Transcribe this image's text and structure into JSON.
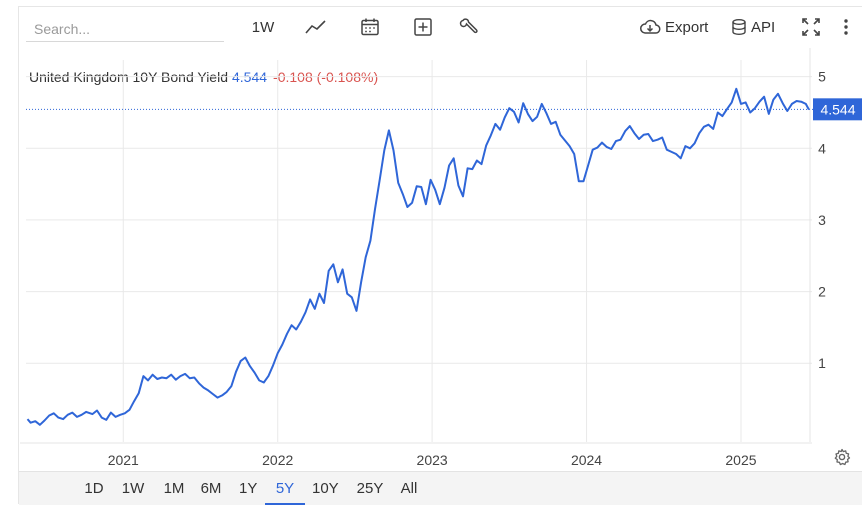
{
  "toolbar": {
    "search_placeholder": "Search...",
    "interval_label": "1W",
    "export_label": "Export",
    "api_label": "API"
  },
  "header": {
    "name": "United Kingdom 10Y Bond Yield",
    "last": "4.544",
    "change": "-0.108 (-0.108%)"
  },
  "price_tag": "4.544",
  "ranges": [
    "1D",
    "1W",
    "1M",
    "6M",
    "1Y",
    "5Y",
    "10Y",
    "25Y",
    "All"
  ],
  "active_range": "5Y",
  "colors": {
    "line": "#2f66d8",
    "negative": "#d9534f",
    "grid": "#e9e9e9"
  },
  "chart_data": {
    "type": "line",
    "title": "United Kingdom 10Y Bond Yield",
    "x_ticks": [
      "2021",
      "2022",
      "2023",
      "2024",
      "2025"
    ],
    "y_ticks": [
      1,
      2,
      3,
      4,
      5
    ],
    "ylim": [
      -0.1,
      5.4
    ],
    "xlim": [
      2020.37,
      2025.46
    ],
    "grid": true,
    "last_value": 4.544,
    "series": [
      {
        "values": [
          [
            2020.38,
            0.22
          ],
          [
            2020.4,
            0.17
          ],
          [
            2020.43,
            0.19
          ],
          [
            2020.46,
            0.14
          ],
          [
            2020.49,
            0.2
          ],
          [
            2020.52,
            0.27
          ],
          [
            2020.55,
            0.3
          ],
          [
            2020.58,
            0.24
          ],
          [
            2020.61,
            0.22
          ],
          [
            2020.64,
            0.28
          ],
          [
            2020.67,
            0.31
          ],
          [
            2020.7,
            0.25
          ],
          [
            2020.73,
            0.28
          ],
          [
            2020.76,
            0.32
          ],
          [
            2020.8,
            0.29
          ],
          [
            2020.83,
            0.34
          ],
          [
            2020.86,
            0.24
          ],
          [
            2020.89,
            0.21
          ],
          [
            2020.92,
            0.31
          ],
          [
            2020.95,
            0.25
          ],
          [
            2020.98,
            0.28
          ],
          [
            2021.01,
            0.3
          ],
          [
            2021.04,
            0.35
          ],
          [
            2021.07,
            0.47
          ],
          [
            2021.1,
            0.58
          ],
          [
            2021.13,
            0.82
          ],
          [
            2021.16,
            0.76
          ],
          [
            2021.19,
            0.84
          ],
          [
            2021.22,
            0.78
          ],
          [
            2021.25,
            0.8
          ],
          [
            2021.28,
            0.79
          ],
          [
            2021.31,
            0.84
          ],
          [
            2021.34,
            0.77
          ],
          [
            2021.37,
            0.82
          ],
          [
            2021.4,
            0.85
          ],
          [
            2021.43,
            0.79
          ],
          [
            2021.46,
            0.8
          ],
          [
            2021.49,
            0.72
          ],
          [
            2021.52,
            0.66
          ],
          [
            2021.55,
            0.62
          ],
          [
            2021.58,
            0.57
          ],
          [
            2021.61,
            0.52
          ],
          [
            2021.64,
            0.55
          ],
          [
            2021.67,
            0.6
          ],
          [
            2021.7,
            0.68
          ],
          [
            2021.73,
            0.88
          ],
          [
            2021.76,
            1.03
          ],
          [
            2021.79,
            1.08
          ],
          [
            2021.82,
            0.96
          ],
          [
            2021.85,
            0.87
          ],
          [
            2021.88,
            0.76
          ],
          [
            2021.91,
            0.73
          ],
          [
            2021.94,
            0.82
          ],
          [
            2021.97,
            0.97
          ],
          [
            2022.0,
            1.14
          ],
          [
            2022.03,
            1.26
          ],
          [
            2022.06,
            1.41
          ],
          [
            2022.09,
            1.53
          ],
          [
            2022.12,
            1.47
          ],
          [
            2022.15,
            1.58
          ],
          [
            2022.18,
            1.71
          ],
          [
            2022.21,
            1.89
          ],
          [
            2022.24,
            1.76
          ],
          [
            2022.27,
            1.97
          ],
          [
            2022.3,
            1.84
          ],
          [
            2022.33,
            2.29
          ],
          [
            2022.36,
            2.38
          ],
          [
            2022.39,
            2.13
          ],
          [
            2022.42,
            2.31
          ],
          [
            2022.45,
            1.97
          ],
          [
            2022.48,
            1.92
          ],
          [
            2022.51,
            1.73
          ],
          [
            2022.54,
            2.13
          ],
          [
            2022.57,
            2.48
          ],
          [
            2022.6,
            2.71
          ],
          [
            2022.63,
            3.15
          ],
          [
            2022.66,
            3.55
          ],
          [
            2022.69,
            3.97
          ],
          [
            2022.72,
            4.25
          ],
          [
            2022.75,
            3.97
          ],
          [
            2022.78,
            3.52
          ],
          [
            2022.81,
            3.36
          ],
          [
            2022.84,
            3.18
          ],
          [
            2022.87,
            3.24
          ],
          [
            2022.9,
            3.47
          ],
          [
            2022.93,
            3.46
          ],
          [
            2022.96,
            3.22
          ],
          [
            2022.99,
            3.56
          ],
          [
            2023.02,
            3.42
          ],
          [
            2023.05,
            3.22
          ],
          [
            2023.08,
            3.45
          ],
          [
            2023.11,
            3.76
          ],
          [
            2023.14,
            3.86
          ],
          [
            2023.17,
            3.48
          ],
          [
            2023.2,
            3.33
          ],
          [
            2023.23,
            3.72
          ],
          [
            2023.26,
            3.71
          ],
          [
            2023.29,
            3.83
          ],
          [
            2023.32,
            3.78
          ],
          [
            2023.35,
            4.04
          ],
          [
            2023.38,
            4.18
          ],
          [
            2023.41,
            4.34
          ],
          [
            2023.44,
            4.26
          ],
          [
            2023.47,
            4.43
          ],
          [
            2023.5,
            4.56
          ],
          [
            2023.53,
            4.51
          ],
          [
            2023.56,
            4.36
          ],
          [
            2023.59,
            4.63
          ],
          [
            2023.62,
            4.48
          ],
          [
            2023.65,
            4.38
          ],
          [
            2023.68,
            4.44
          ],
          [
            2023.71,
            4.62
          ],
          [
            2023.74,
            4.49
          ],
          [
            2023.77,
            4.34
          ],
          [
            2023.8,
            4.37
          ],
          [
            2023.83,
            4.19
          ],
          [
            2023.86,
            4.11
          ],
          [
            2023.89,
            4.03
          ],
          [
            2023.92,
            3.92
          ],
          [
            2023.95,
            3.54
          ],
          [
            2023.98,
            3.54
          ],
          [
            2024.01,
            3.76
          ],
          [
            2024.04,
            3.98
          ],
          [
            2024.07,
            4.01
          ],
          [
            2024.1,
            4.08
          ],
          [
            2024.13,
            4.02
          ],
          [
            2024.16,
            3.99
          ],
          [
            2024.19,
            4.1
          ],
          [
            2024.22,
            4.12
          ],
          [
            2024.25,
            4.24
          ],
          [
            2024.28,
            4.31
          ],
          [
            2024.31,
            4.21
          ],
          [
            2024.34,
            4.13
          ],
          [
            2024.37,
            4.19
          ],
          [
            2024.4,
            4.2
          ],
          [
            2024.43,
            4.1
          ],
          [
            2024.46,
            4.12
          ],
          [
            2024.49,
            4.15
          ],
          [
            2024.52,
            3.98
          ],
          [
            2024.55,
            3.95
          ],
          [
            2024.58,
            3.92
          ],
          [
            2024.61,
            3.86
          ],
          [
            2024.64,
            4.03
          ],
          [
            2024.67,
            4.0
          ],
          [
            2024.7,
            4.07
          ],
          [
            2024.73,
            4.21
          ],
          [
            2024.76,
            4.3
          ],
          [
            2024.79,
            4.33
          ],
          [
            2024.82,
            4.27
          ],
          [
            2024.85,
            4.5
          ],
          [
            2024.88,
            4.45
          ],
          [
            2024.91,
            4.55
          ],
          [
            2024.94,
            4.64
          ],
          [
            2024.97,
            4.83
          ],
          [
            2025.0,
            4.62
          ],
          [
            2025.03,
            4.64
          ],
          [
            2025.06,
            4.5
          ],
          [
            2025.09,
            4.56
          ],
          [
            2025.12,
            4.65
          ],
          [
            2025.15,
            4.72
          ],
          [
            2025.18,
            4.48
          ],
          [
            2025.21,
            4.68
          ],
          [
            2025.24,
            4.76
          ],
          [
            2025.27,
            4.63
          ],
          [
            2025.3,
            4.52
          ],
          [
            2025.33,
            4.62
          ],
          [
            2025.36,
            4.66
          ],
          [
            2025.39,
            4.65
          ],
          [
            2025.42,
            4.62
          ],
          [
            2025.44,
            4.54
          ]
        ]
      }
    ]
  }
}
